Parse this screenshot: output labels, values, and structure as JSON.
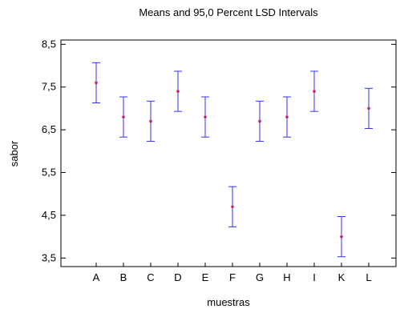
{
  "chart_data": {
    "type": "scatter",
    "subtype": "means-with-interval-bars",
    "title": "Means and 95,0 Percent LSD Intervals",
    "xlabel": "muestras",
    "ylabel": "sabor",
    "categories": [
      "A",
      "B",
      "C",
      "D",
      "E",
      "F",
      "G",
      "H",
      "I",
      "K",
      "L"
    ],
    "means": [
      7.6,
      6.8,
      6.7,
      7.4,
      6.8,
      4.7,
      6.7,
      6.8,
      7.4,
      4.0,
      7.0
    ],
    "lower": [
      7.13,
      6.33,
      6.23,
      6.93,
      6.33,
      4.23,
      6.23,
      6.33,
      6.93,
      3.53,
      6.53
    ],
    "upper": [
      8.07,
      7.27,
      7.17,
      7.87,
      7.27,
      5.17,
      7.17,
      7.27,
      7.87,
      4.47,
      7.47
    ],
    "ylim": [
      3.3,
      8.6
    ],
    "yticks": [
      3.5,
      4.5,
      5.5,
      6.5,
      7.5,
      8.5
    ],
    "ytick_labels": [
      "3,5",
      "4,5",
      "5,5",
      "6,5",
      "7,5",
      "8,5"
    ],
    "grid": false,
    "legend": "none",
    "colors": {
      "interval": "#3333ee",
      "mean_marker": "#cc2266",
      "axes": "#000000"
    }
  }
}
